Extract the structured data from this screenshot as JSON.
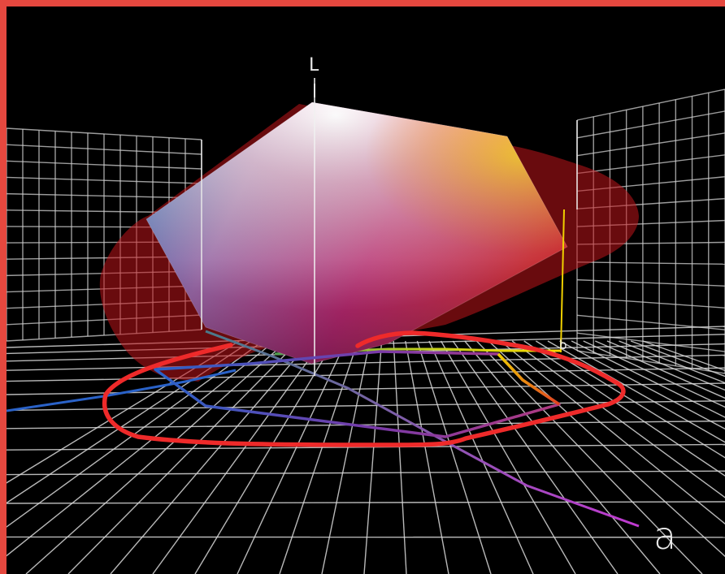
{
  "figure": {
    "kind": "3D CIELAB color gamut comparison",
    "axes": {
      "l_label": "L",
      "a_label": "a",
      "b_label": "b"
    },
    "colors": {
      "frame_border": "#e5483f",
      "background": "#000000",
      "grid": "#d8d8d8",
      "large_gamut_fill": "#c0141a",
      "gamut_outline": "#ee2a2a",
      "a_axis": "#b03ab8",
      "b_axis_neg": "#2a6ad0",
      "b_axis_pos": "#f2d200"
    }
  }
}
